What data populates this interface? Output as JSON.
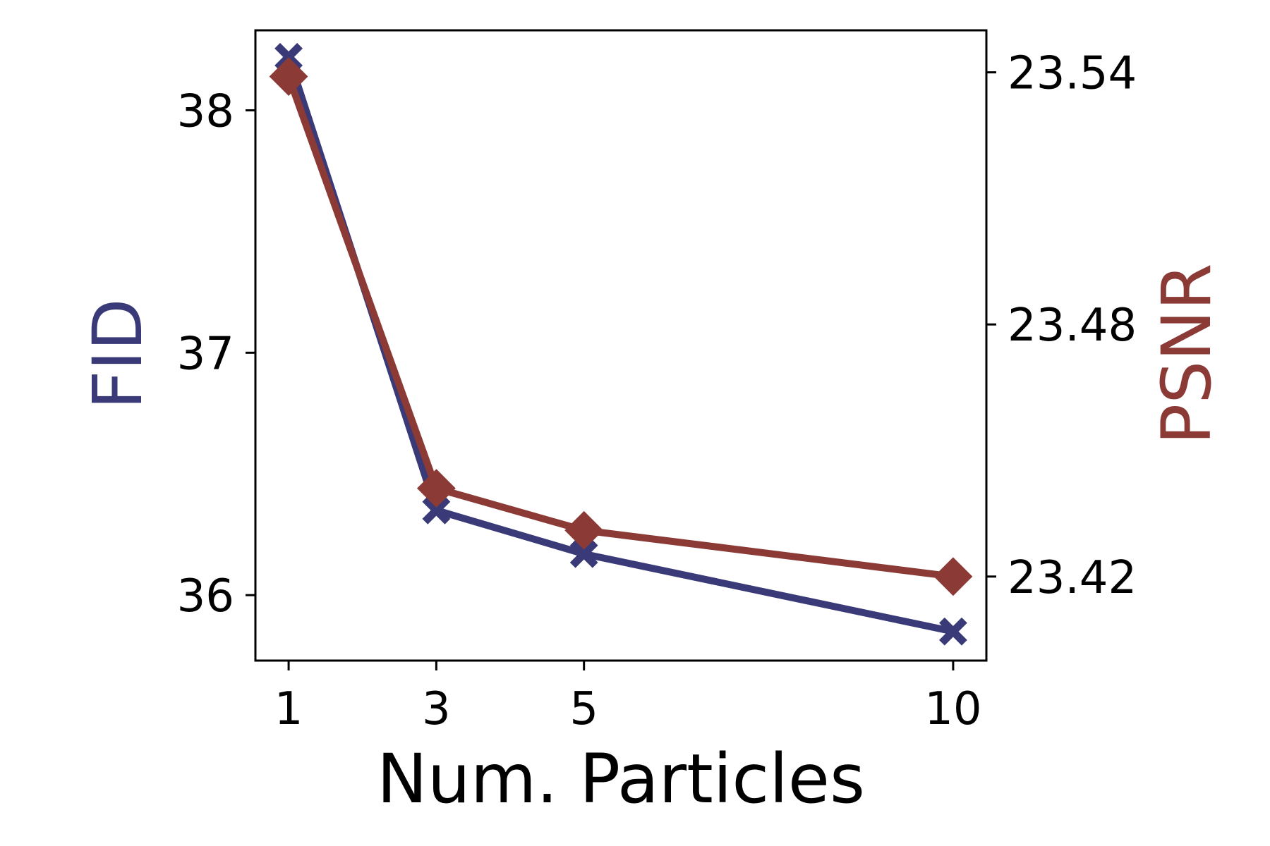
{
  "chart_data": {
    "type": "line",
    "x": [
      1,
      3,
      5,
      10
    ],
    "x_ticks": [
      1,
      3,
      5,
      10
    ],
    "x_tick_labels": [
      "1",
      "3",
      "5",
      "10"
    ],
    "xlabel": "Num. Particles",
    "xlim": [
      0.55,
      10.45
    ],
    "y_left": {
      "label": "FID",
      "color": "#3a3a78",
      "ticks": [
        36,
        37,
        38
      ],
      "tick_labels": [
        "36",
        "37",
        "38"
      ],
      "lim": [
        35.73,
        38.33
      ]
    },
    "y_right": {
      "label": "PSNR",
      "color": "#8b3a35",
      "ticks": [
        23.42,
        23.48,
        23.54
      ],
      "tick_labels": [
        "23.42",
        "23.48",
        "23.54"
      ],
      "lim": [
        23.4,
        23.55
      ]
    },
    "series": [
      {
        "name": "FID",
        "axis": "left",
        "marker": "x",
        "color": "#3a3a78",
        "values": [
          38.22,
          36.35,
          36.17,
          35.85
        ]
      },
      {
        "name": "PSNR",
        "axis": "right",
        "marker": "diamond",
        "color": "#8b3a35",
        "values": [
          23.539,
          23.441,
          23.431,
          23.42
        ]
      }
    ],
    "grid": false,
    "legend": "none"
  }
}
